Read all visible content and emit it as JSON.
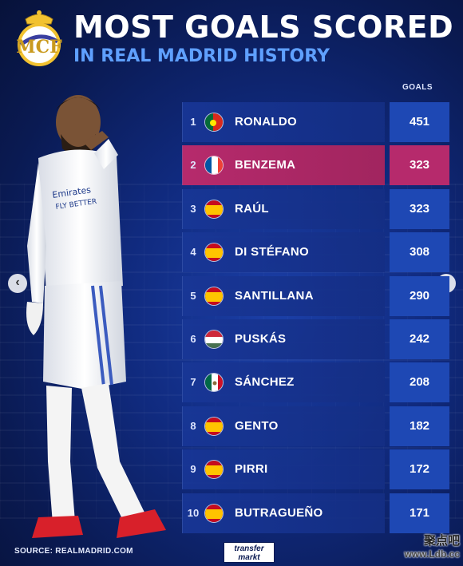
{
  "header": {
    "title": "MOST GOALS SCORED",
    "subtitle": "IN REAL MADRID HISTORY",
    "goals_column": "GOALS"
  },
  "colors": {
    "background": "#102a7e",
    "row": "#1a3a9c",
    "goals_cell": "#1e48b4",
    "highlight": "#b62a6c",
    "subtitle": "#5fa0ff"
  },
  "players": [
    {
      "rank": "1",
      "name": "RONALDO",
      "goals": "451",
      "flag": "portugal-flag-icon"
    },
    {
      "rank": "2",
      "name": "BENZEMA",
      "goals": "323",
      "flag": "france-flag-icon",
      "highlight": true
    },
    {
      "rank": "3",
      "name": "RAÚL",
      "goals": "323",
      "flag": "spain-flag-icon"
    },
    {
      "rank": "4",
      "name": "DI STÉFANO",
      "goals": "308",
      "flag": "spain-flag-icon"
    },
    {
      "rank": "5",
      "name": "SANTILLANA",
      "goals": "290",
      "flag": "spain-flag-icon"
    },
    {
      "rank": "6",
      "name": "PUSKÁS",
      "goals": "242",
      "flag": "hungary-flag-icon"
    },
    {
      "rank": "7",
      "name": "SÁNCHEZ",
      "goals": "208",
      "flag": "mexico-flag-icon"
    },
    {
      "rank": "8",
      "name": "GENTO",
      "goals": "182",
      "flag": "spain-flag-icon"
    },
    {
      "rank": "9",
      "name": "PIRRI",
      "goals": "172",
      "flag": "spain-flag-icon"
    },
    {
      "rank": "10",
      "name": "BUTRAGUEÑO",
      "goals": "171",
      "flag": "spain-flag-icon"
    }
  ],
  "footer": {
    "source": "SOURCE: REALMADRID.COM",
    "logo_line1": "transfer",
    "logo_line2": "markt"
  },
  "watermark": {
    "text": "聚点吧",
    "url": "www.Ldb.cc"
  },
  "nav": {
    "prev": "‹",
    "next": "›"
  }
}
